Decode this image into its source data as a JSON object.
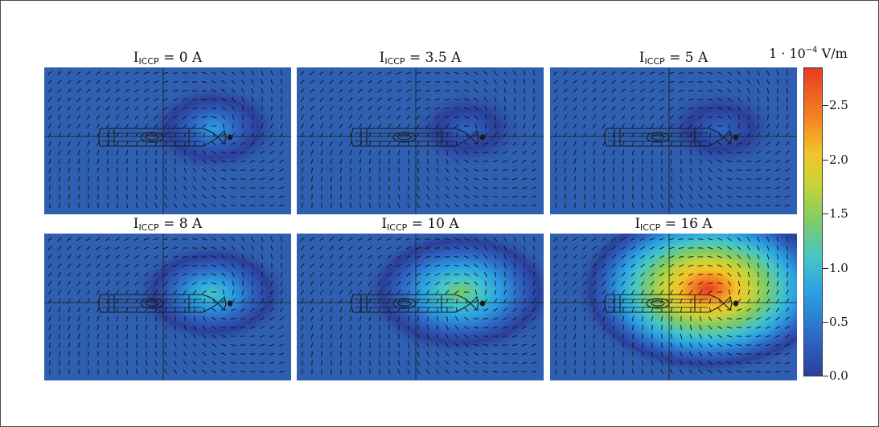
{
  "chart_data": {
    "type": "heatmap",
    "panels": [
      {
        "prefix": "I",
        "subscript": "ICCP",
        "value_label": " = 0 A",
        "current_A": 0,
        "peak_field": 0.62
      },
      {
        "prefix": "I",
        "subscript": "ICCP",
        "value_label": " = 3.5 A",
        "current_A": 3.5,
        "peak_field": 0.38
      },
      {
        "prefix": "I",
        "subscript": "ICCP",
        "value_label": " = 5 A",
        "current_A": 5,
        "peak_field": 0.48
      },
      {
        "prefix": "I",
        "subscript": "ICCP",
        "value_label": " = 8 A",
        "current_A": 8,
        "peak_field": 0.95
      },
      {
        "prefix": "I",
        "subscript": "ICCP",
        "value_label": " = 10 A",
        "current_A": 10,
        "peak_field": 1.6
      },
      {
        "prefix": "I",
        "subscript": "ICCP",
        "value_label": " = 16 A",
        "current_A": 16,
        "peak_field": 2.7
      }
    ],
    "colorbar": {
      "unit_prefix": "1 · 10",
      "unit_exponent": "−4",
      "unit_suffix": " V/m",
      "range": [
        0.0,
        2.85
      ],
      "tick_labels": [
        "0.0",
        "0.5",
        "1.0",
        "1.5",
        "2.0",
        "2.5"
      ],
      "ticks": [
        0.0,
        0.5,
        1.0,
        1.5,
        2.0,
        2.5
      ],
      "colormap": [
        "#2b3f9a",
        "#2e66c4",
        "#2aa0e2",
        "#44c6c8",
        "#7ccb6a",
        "#c6d43a",
        "#f2c52a",
        "#f57e22",
        "#e83a24"
      ]
    }
  }
}
